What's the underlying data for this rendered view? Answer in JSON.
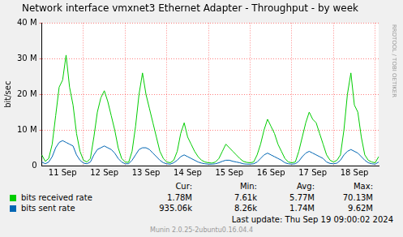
{
  "chart_data": {
    "type": "line",
    "title": "Network interface vmxnet3 Ethernet Adapter - Throughput - by week",
    "y_label": "bit/sec",
    "side_text": "RRDTOOL / TOBI OETIKER",
    "categories": [
      null,
      null,
      null,
      null,
      null,
      null,
      "11 Sep",
      null,
      null,
      null,
      null,
      null,
      null,
      null,
      null,
      null,
      null,
      null,
      "12 Sep",
      null,
      null,
      null,
      null,
      null,
      null,
      null,
      null,
      null,
      null,
      null,
      "13 Sep",
      null,
      null,
      null,
      null,
      null,
      null,
      null,
      null,
      null,
      null,
      null,
      "14 Sep",
      null,
      null,
      null,
      null,
      null,
      null,
      null,
      null,
      null,
      null,
      null,
      "15 Sep",
      null,
      null,
      null,
      null,
      null,
      null,
      null,
      null,
      null,
      null,
      null,
      "16 Sep",
      null,
      null,
      null,
      null,
      null,
      null,
      null,
      null,
      null,
      null,
      null,
      "17 Sep",
      null,
      null,
      null,
      null,
      null,
      null,
      null,
      null,
      null,
      null,
      null,
      "18 Sep",
      null,
      null,
      null,
      null,
      null,
      null,
      null
    ],
    "series": [
      {
        "name": "bits received rate",
        "color": "#00cc00",
        "stats": [
          "1.78M",
          "7.61k",
          "5.77M",
          "70.13M"
        ],
        "values": [
          3000000.0,
          1200000.0,
          2000000.0,
          6000000.0,
          14000000.0,
          22000000.0,
          24000000.0,
          31000000.0,
          22000000.0,
          17000000.0,
          9000000.0,
          4000000.0,
          1500000.0,
          1000000.0,
          2000000.0,
          8000000.0,
          15000000.0,
          19000000.0,
          21000000.0,
          18000000.0,
          14000000.0,
          10000000.0,
          5000000.0,
          2000000.0,
          1000000.0,
          900000.0,
          4000000.0,
          11000000.0,
          20000000.0,
          26000000.0,
          20000000.0,
          16000000.0,
          12000000.0,
          8000000.0,
          4000000.0,
          2000000.0,
          1000000.0,
          800000.0,
          1500000.0,
          4000000.0,
          9000000.0,
          12000000.0,
          8000000.0,
          6000000.0,
          4000000.0,
          2500000.0,
          1500000.0,
          1000000.0,
          800000.0,
          700000.0,
          1000000.0,
          2000000.0,
          4000000.0,
          6000000.0,
          5000000.0,
          4000000.0,
          3000000.0,
          2000000.0,
          1200000.0,
          900000.0,
          800000.0,
          1000000.0,
          3000000.0,
          6000000.0,
          10000000.0,
          13000000.0,
          11000000.0,
          9000000.0,
          6000000.0,
          4000000.0,
          2000000.0,
          1000000.0,
          800000.0,
          1000000.0,
          4000000.0,
          8000000.0,
          12000000.0,
          15000000.0,
          13000000.0,
          12000000.0,
          9000000.0,
          6000000.0,
          3000000.0,
          1500000.0,
          1000000.0,
          1500000.0,
          3000000.0,
          10000000.0,
          20000000.0,
          26000000.0,
          17000000.0,
          15000000.0,
          8000000.0,
          3000000.0,
          1500000.0,
          1000000.0,
          800000.0,
          2500000.0
        ]
      },
      {
        "name": "bits sent rate",
        "color": "#0066b3",
        "stats": [
          "935.06k",
          "8.26k",
          "1.74M",
          "9.62M"
        ],
        "values": [
          1000000.0,
          500000.0,
          1000000.0,
          2500000.0,
          5000000.0,
          6500000.0,
          7000000.0,
          6500000.0,
          6000000.0,
          5500000.0,
          3000000.0,
          1500000.0,
          700000.0,
          500000.0,
          1000000.0,
          3000000.0,
          4500000.0,
          5000000.0,
          5500000.0,
          5000000.0,
          4500000.0,
          3500000.0,
          2000000.0,
          1000000.0,
          500000.0,
          500000.0,
          1500000.0,
          3000000.0,
          4500000.0,
          5000000.0,
          5000000.0,
          4500000.0,
          3500000.0,
          2500000.0,
          1500000.0,
          800000.0,
          500000.0,
          400000.0,
          800000.0,
          1500000.0,
          2500000.0,
          3000000.0,
          2500000.0,
          2000000.0,
          1500000.0,
          1000000.0,
          700000.0,
          500000.0,
          400000.0,
          400000.0,
          500000.0,
          800000.0,
          1200000.0,
          1500000.0,
          1500000.0,
          1200000.0,
          1000000.0,
          800000.0,
          500000.0,
          400000.0,
          400000.0,
          500000.0,
          1000000.0,
          2000000.0,
          3000000.0,
          3500000.0,
          3000000.0,
          2500000.0,
          2000000.0,
          1500000.0,
          800000.0,
          500000.0,
          400000.0,
          500000.0,
          1200000.0,
          2500000.0,
          3500000.0,
          4000000.0,
          3500000.0,
          3000000.0,
          2500000.0,
          2000000.0,
          1000000.0,
          600000.0,
          500000.0,
          700000.0,
          1500000.0,
          3000000.0,
          4000000.0,
          4500000.0,
          4000000.0,
          3500000.0,
          2500000.0,
          1500000.0,
          800000.0,
          500000.0,
          400000.0,
          1000000.0
        ]
      }
    ],
    "stats_headers": [
      "Cur:",
      "Min:",
      "Avg:",
      "Max:"
    ],
    "ylim": [
      0,
      40000000
    ],
    "yticks": [
      0,
      {
        "value": 10000000,
        "label": "10 M"
      },
      {
        "value": 20000000,
        "label": "20 M"
      },
      {
        "value": 30000000,
        "label": "30 M"
      },
      {
        "value": 40000000,
        "label": "40 M"
      }
    ],
    "grid": true,
    "legend": "bottom",
    "last_update": "Last update:  Thu Sep 19 09:00:02 2024",
    "footer": "Munin 2.0.25-2ubuntu0.16.04.4"
  }
}
